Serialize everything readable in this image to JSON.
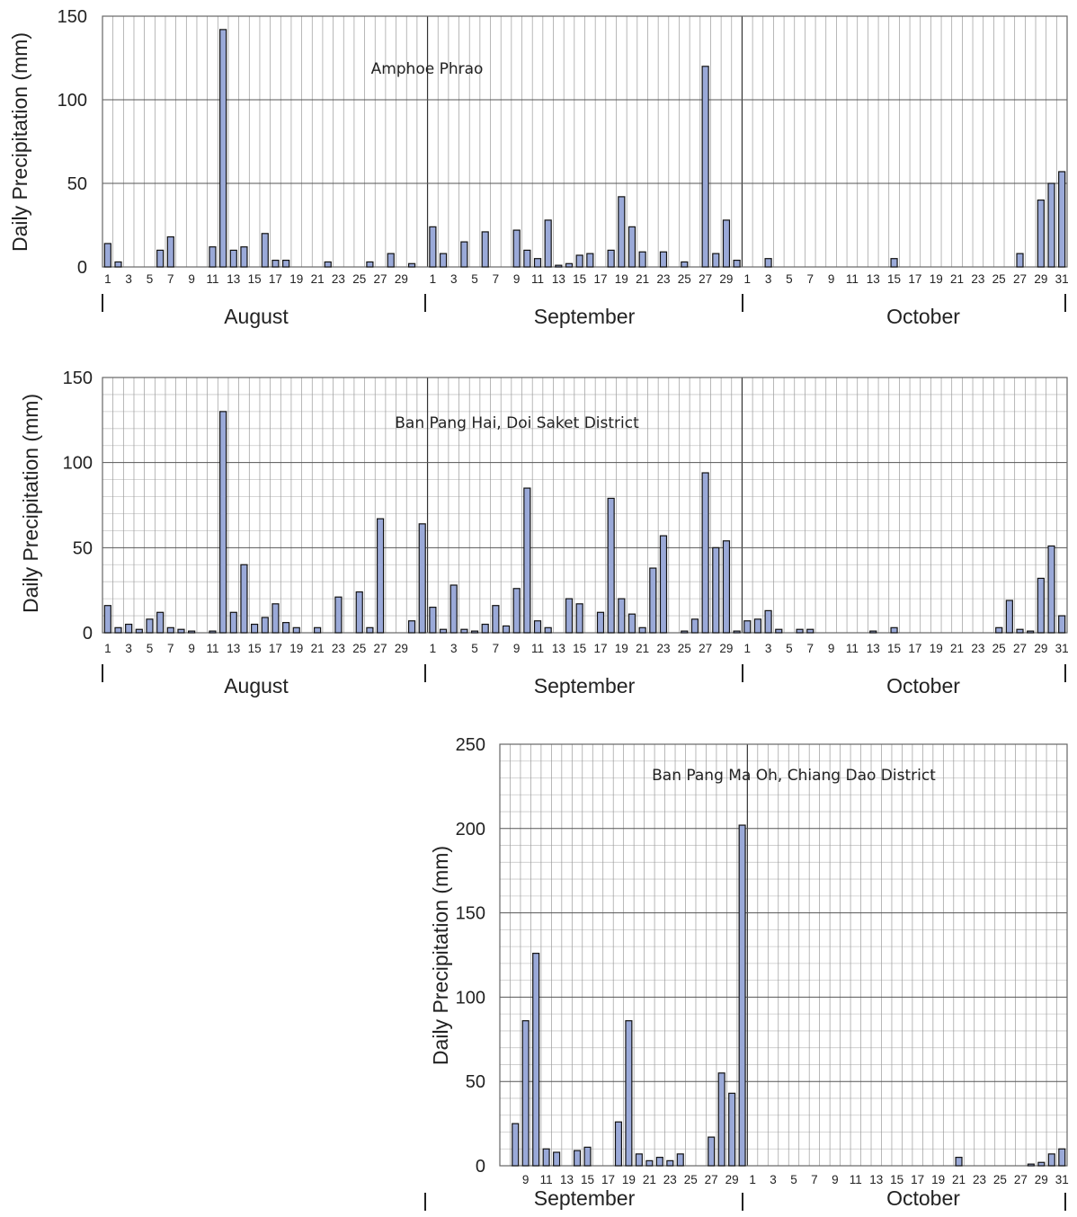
{
  "chart_data": [
    {
      "type": "bar",
      "title": "Amphoe Phrao",
      "ylabel": "Daily Precipitation (mm)",
      "ylim": [
        0,
        150
      ],
      "yticks": [
        0,
        50,
        100,
        150
      ],
      "months": [
        {
          "name": "August",
          "start_day": 1,
          "days": 31
        },
        {
          "name": "September",
          "start_day": 1,
          "days": 30
        },
        {
          "name": "October",
          "start_day": 1,
          "days": 31
        }
      ],
      "tick_labels": [
        "1",
        "3",
        "5",
        "7",
        "9",
        "11",
        "13",
        "15",
        "17",
        "19",
        "21",
        "23",
        "25",
        "27",
        "29",
        "1",
        "3",
        "5",
        "7",
        "9",
        "11",
        "13",
        "15",
        "17",
        "19",
        "21",
        "23",
        "25",
        "27",
        "29",
        "1",
        "3",
        "5",
        "7",
        "9",
        "11",
        "13",
        "15",
        "17",
        "19",
        "21",
        "23",
        "25",
        "27",
        "29",
        "31"
      ],
      "values": [
        14,
        3,
        0,
        0,
        0,
        10,
        18,
        0,
        0,
        0,
        12,
        142,
        10,
        12,
        0,
        20,
        4,
        4,
        0,
        0,
        0,
        3,
        0,
        0,
        0,
        3,
        0,
        8,
        0,
        2,
        0,
        24,
        8,
        0,
        15,
        0,
        21,
        0,
        0,
        22,
        10,
        5,
        28,
        1,
        2,
        7,
        8,
        0,
        10,
        42,
        24,
        9,
        0,
        9,
        0,
        3,
        0,
        120,
        8,
        28,
        4,
        0,
        0,
        5,
        0,
        0,
        0,
        0,
        0,
        0,
        0,
        0,
        0,
        0,
        0,
        5,
        0,
        0,
        0,
        0,
        0,
        0,
        0,
        0,
        0,
        0,
        0,
        8,
        0,
        40,
        50,
        57
      ]
    },
    {
      "type": "bar",
      "title": "Ban Pang Hai, Doi Saket District",
      "ylabel": "Daily Precipitation (mm)",
      "ylim": [
        0,
        150
      ],
      "yticks": [
        0,
        50,
        100,
        150
      ],
      "months": [
        {
          "name": "August",
          "start_day": 1,
          "days": 31
        },
        {
          "name": "September",
          "start_day": 1,
          "days": 30
        },
        {
          "name": "October",
          "start_day": 1,
          "days": 31
        }
      ],
      "tick_labels": [
        "1",
        "3",
        "5",
        "7",
        "9",
        "11",
        "13",
        "15",
        "17",
        "19",
        "21",
        "23",
        "25",
        "27",
        "29",
        "1",
        "3",
        "5",
        "7",
        "9",
        "11",
        "13",
        "15",
        "17",
        "19",
        "21",
        "23",
        "25",
        "27",
        "29",
        "1",
        "3",
        "5",
        "7",
        "9",
        "11",
        "13",
        "15",
        "17",
        "19",
        "21",
        "23",
        "25",
        "27",
        "29",
        "31"
      ],
      "values": [
        16,
        3,
        5,
        2,
        8,
        12,
        3,
        2,
        1,
        0,
        1,
        130,
        12,
        40,
        5,
        9,
        17,
        6,
        3,
        0,
        3,
        0,
        21,
        0,
        24,
        3,
        67,
        0,
        0,
        7,
        64,
        15,
        2,
        28,
        2,
        1,
        5,
        16,
        4,
        26,
        85,
        7,
        3,
        0,
        20,
        17,
        0,
        12,
        79,
        20,
        11,
        3,
        38,
        57,
        0,
        1,
        8,
        94,
        50,
        54,
        1,
        7,
        8,
        13,
        2,
        0,
        2,
        2,
        0,
        0,
        0,
        0,
        0,
        1,
        0,
        3,
        0,
        0,
        0,
        0,
        0,
        0,
        0,
        0,
        0,
        3,
        19,
        2,
        1,
        32,
        51,
        10
      ]
    },
    {
      "type": "bar",
      "title": "Ban Pang Ma Oh, Chiang Dao District",
      "ylabel": "Daily Precipitation (mm)",
      "ylim": [
        0,
        250
      ],
      "yticks": [
        0,
        50,
        100,
        150,
        200,
        250
      ],
      "months": [
        {
          "name": "September",
          "start_day": 7,
          "days": 24
        },
        {
          "name": "October",
          "start_day": 1,
          "days": 31
        }
      ],
      "tick_labels": [
        "9",
        "11",
        "13",
        "15",
        "17",
        "19",
        "21",
        "23",
        "25",
        "27",
        "29",
        "1",
        "3",
        "5",
        "7",
        "9",
        "11",
        "13",
        "15",
        "17",
        "19",
        "21",
        "23",
        "25",
        "27",
        "29",
        "31"
      ],
      "values": [
        0,
        25,
        86,
        126,
        10,
        8,
        0,
        9,
        11,
        0,
        0,
        26,
        86,
        7,
        3,
        5,
        3,
        7,
        0,
        0,
        17,
        55,
        43,
        202,
        0,
        0,
        0,
        0,
        0,
        0,
        0,
        0,
        0,
        0,
        0,
        0,
        0,
        0,
        0,
        0,
        0,
        0,
        0,
        0,
        5,
        0,
        0,
        0,
        0,
        0,
        0,
        1,
        2,
        7,
        10
      ]
    }
  ]
}
